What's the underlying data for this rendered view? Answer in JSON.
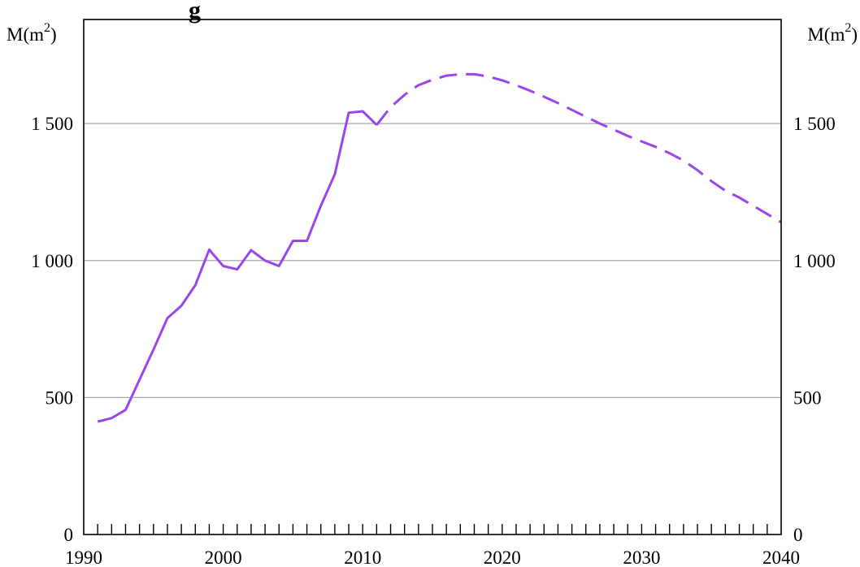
{
  "chart_data": {
    "type": "line",
    "title": "g",
    "y_unit_left": "M(m²)",
    "y_unit_right": "M(m²)",
    "xlim": [
      1990,
      2040
    ],
    "ylim": [
      0,
      1880
    ],
    "x_ticks": [
      1990,
      2000,
      2010,
      2020,
      2030,
      2040
    ],
    "x_tick_labels": [
      "1990",
      "2000",
      "2010",
      "2020",
      "2030",
      "2040"
    ],
    "y_ticks": [
      0,
      500,
      1000,
      1500
    ],
    "y_tick_labels": [
      "0",
      "500",
      "1 000",
      "1 500"
    ],
    "grid": "horizontal",
    "color": "#9b45ee",
    "series": [
      {
        "style": "solid",
        "x": [
          1991,
          1992,
          1993,
          1994,
          1995,
          1996,
          1997,
          1998,
          1999,
          2000,
          2001,
          2002,
          2003,
          2004,
          2005,
          2006,
          2007,
          2008,
          2009,
          2010,
          2011
        ],
        "y": [
          412,
          425,
          455,
          565,
          675,
          790,
          835,
          910,
          1040,
          980,
          968,
          1038,
          1000,
          980,
          1072,
          1072,
          1200,
          1315,
          1540,
          1545,
          1495
        ]
      },
      {
        "style": "dashed",
        "x": [
          2011,
          2012,
          2013,
          2014,
          2015,
          2016,
          2017,
          2018,
          2019,
          2020,
          2021,
          2022,
          2023,
          2024,
          2025,
          2026,
          2027,
          2028,
          2029,
          2030,
          2031,
          2032,
          2033,
          2034,
          2035,
          2036,
          2037,
          2038,
          2039,
          2040
        ],
        "y": [
          1495,
          1560,
          1605,
          1640,
          1660,
          1675,
          1680,
          1680,
          1672,
          1658,
          1640,
          1620,
          1598,
          1575,
          1550,
          1525,
          1500,
          1478,
          1455,
          1435,
          1415,
          1392,
          1365,
          1330,
          1290,
          1255,
          1230,
          1200,
          1170,
          1140
        ]
      }
    ]
  }
}
